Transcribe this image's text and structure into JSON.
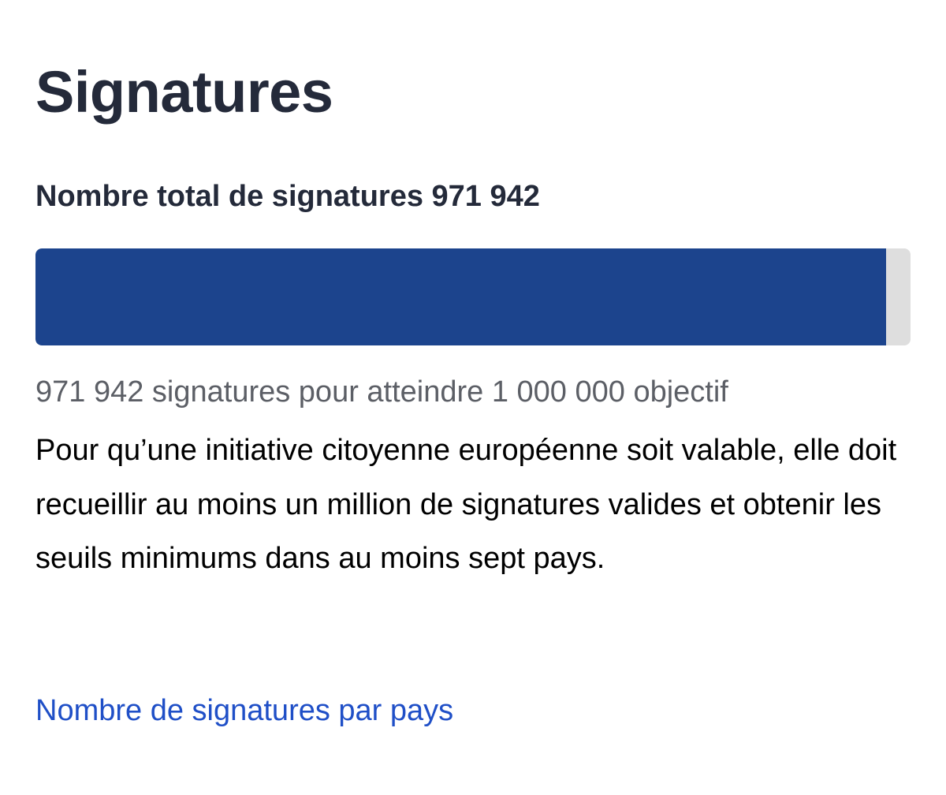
{
  "heading": {
    "title": "Signatures",
    "total_label": "Nombre total de signatures 971 942"
  },
  "progress": {
    "current": 971942,
    "goal": 1000000,
    "fraction": 0.9719,
    "summary": "971 942 signatures pour atteindre 1 000 000 objectif"
  },
  "description": "Pour qu’une initiative citoyenne européenne soit valable, elle doit recueillir au moins un million de signatures valides et obtenir les seuils minimums dans au moins sept pays.",
  "links": {
    "by_country": "Nombre de signatures par pays"
  },
  "colors": {
    "title": "#242a3a",
    "progress_fill": "#1c448d",
    "progress_track": "#dedede",
    "summary_text": "#5c5f66",
    "link": "#1f4fc7"
  }
}
